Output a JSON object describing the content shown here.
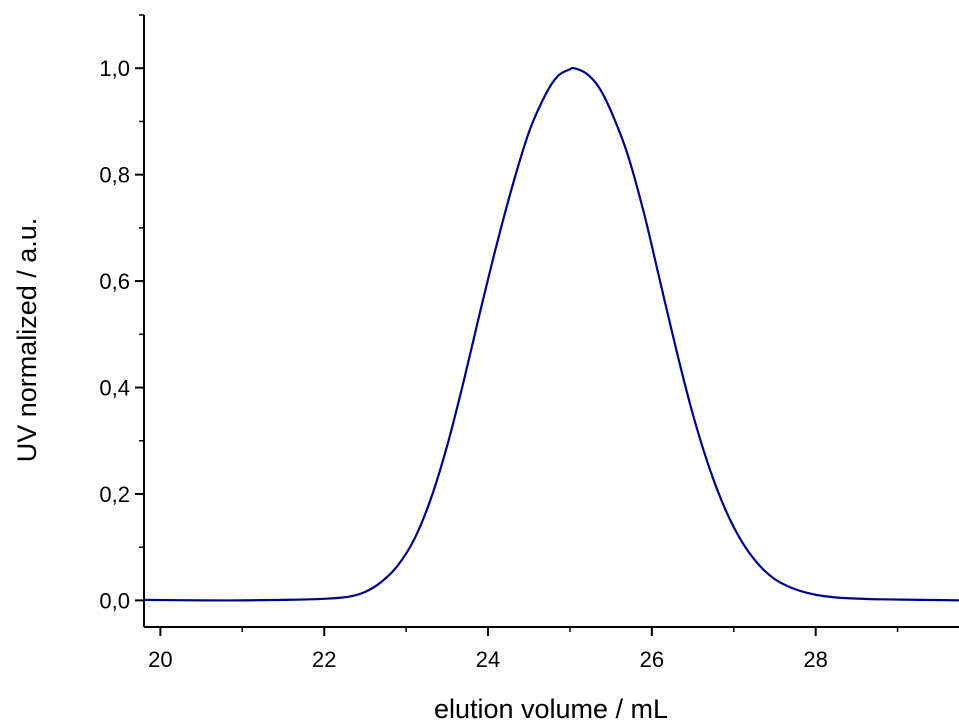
{
  "chart_data": {
    "type": "line",
    "title": "",
    "xlabel": "elution volume / mL",
    "ylabel": "UV normalized / a.u.",
    "xlim": [
      19.8,
      29.75
    ],
    "ylim": [
      -0.05,
      1.1
    ],
    "x_ticks": [
      "20",
      "22",
      "24",
      "26",
      "28"
    ],
    "y_ticks": [
      "0,0",
      "0,2",
      "0,4",
      "0,6",
      "0,8",
      "1,0"
    ],
    "grid": false,
    "line_color": "#00008B",
    "series": [
      {
        "x": [
          19.8,
          20.5,
          21.0,
          21.5,
          22.0,
          22.3,
          22.5,
          22.7,
          22.9,
          23.1,
          23.3,
          23.5,
          23.7,
          23.9,
          24.1,
          24.3,
          24.5,
          24.7,
          24.85,
          25.0,
          25.05,
          25.2,
          25.35,
          25.5,
          25.7,
          25.9,
          26.1,
          26.3,
          26.5,
          26.7,
          26.9,
          27.1,
          27.3,
          27.5,
          27.7,
          27.9,
          28.1,
          28.4,
          28.8,
          29.3,
          29.75
        ],
        "y": [
          0.001,
          0.0,
          0.0,
          0.001,
          0.003,
          0.007,
          0.016,
          0.035,
          0.066,
          0.115,
          0.19,
          0.29,
          0.41,
          0.54,
          0.665,
          0.78,
          0.88,
          0.95,
          0.985,
          0.998,
          1.0,
          0.99,
          0.965,
          0.92,
          0.84,
          0.73,
          0.6,
          0.47,
          0.35,
          0.25,
          0.17,
          0.11,
          0.068,
          0.04,
          0.024,
          0.014,
          0.008,
          0.004,
          0.002,
          0.001,
          0.0
        ]
      }
    ]
  }
}
